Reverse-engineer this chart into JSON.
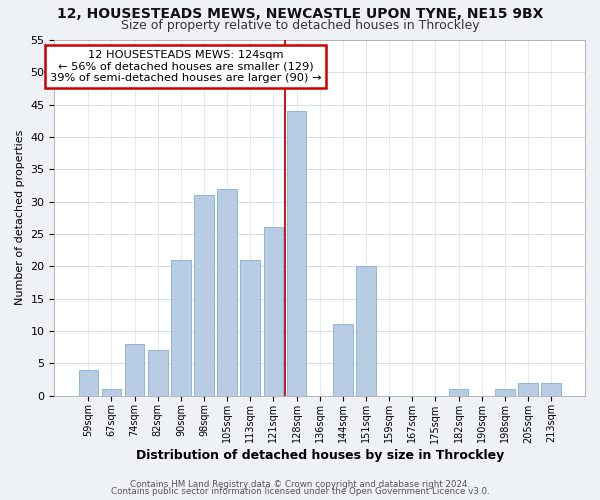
{
  "title": "12, HOUSESTEADS MEWS, NEWCASTLE UPON TYNE, NE15 9BX",
  "subtitle": "Size of property relative to detached houses in Throckley",
  "xlabel": "Distribution of detached houses by size in Throckley",
  "ylabel": "Number of detached properties",
  "bar_labels": [
    "59sqm",
    "67sqm",
    "74sqm",
    "82sqm",
    "90sqm",
    "98sqm",
    "105sqm",
    "113sqm",
    "121sqm",
    "128sqm",
    "136sqm",
    "144sqm",
    "151sqm",
    "159sqm",
    "167sqm",
    "175sqm",
    "182sqm",
    "190sqm",
    "198sqm",
    "205sqm",
    "213sqm"
  ],
  "bar_values": [
    4,
    1,
    8,
    7,
    21,
    31,
    32,
    21,
    26,
    44,
    0,
    11,
    20,
    0,
    0,
    0,
    1,
    0,
    1,
    2,
    2
  ],
  "bar_color": "#b8cce4",
  "bar_edge_color": "#7fafd4",
  "vline_x": 8.5,
  "vline_color": "#cc0000",
  "annotation_line1": "12 HOUSESTEADS MEWS: 124sqm",
  "annotation_line2": "← 56% of detached houses are smaller (129)",
  "annotation_line3": "39% of semi-detached houses are larger (90) →",
  "ylim": [
    0,
    55
  ],
  "yticks": [
    0,
    5,
    10,
    15,
    20,
    25,
    30,
    35,
    40,
    45,
    50,
    55
  ],
  "footer1": "Contains HM Land Registry data © Crown copyright and database right 2024.",
  "footer2": "Contains public sector information licensed under the Open Government Licence v3.0.",
  "background_color": "#eef2f7",
  "plot_bg_color": "#ffffff",
  "grid_color": "#d0d8e4"
}
